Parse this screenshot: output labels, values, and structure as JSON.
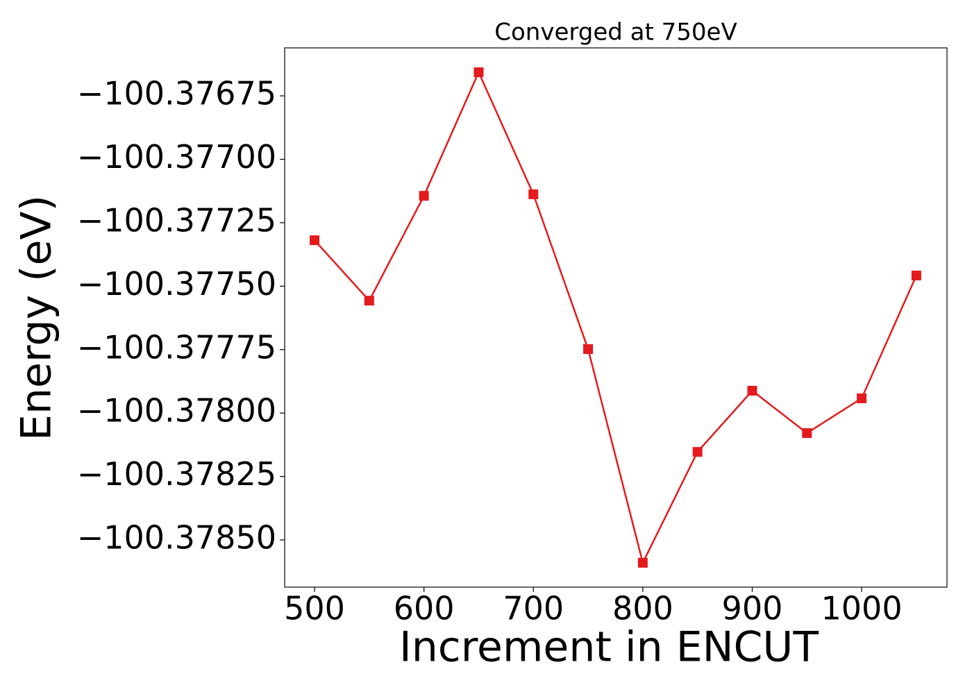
{
  "chart_data": {
    "type": "line",
    "title": "Converged at 750eV",
    "x_label": "Increment in ENCUT",
    "y_label": "Energy (eV)",
    "x": [
      500,
      550,
      600,
      650,
      700,
      750,
      800,
      850,
      900,
      950,
      1000,
      1050
    ],
    "series": [
      {
        "name": "Energy",
        "color": "#e41a1c",
        "values": [
          -100.377319,
          -100.377557,
          -100.377144,
          -100.376657,
          -100.377138,
          -100.377748,
          -100.37859,
          -100.378153,
          -100.377912,
          -100.378079,
          -100.377942,
          -100.377458
        ]
      }
    ],
    "xlim": [
      472.7,
      1078
    ],
    "xticks": [
      500,
      600,
      700,
      800,
      900,
      1000
    ],
    "ylim": [
      -100.378686,
      -100.376561
    ],
    "yticks": [
      {
        "value": -100.3785,
        "label": "−100.37850"
      },
      {
        "value": -100.37825,
        "label": "−100.37825"
      },
      {
        "value": -100.378,
        "label": "−100.37800"
      },
      {
        "value": -100.37775,
        "label": "−100.37775"
      },
      {
        "value": -100.3775,
        "label": "−100.37750"
      },
      {
        "value": -100.37725,
        "label": "−100.37725"
      },
      {
        "value": -100.377,
        "label": "−100.37700"
      },
      {
        "value": -100.37675,
        "label": "−100.37675"
      }
    ],
    "grid": false
  }
}
